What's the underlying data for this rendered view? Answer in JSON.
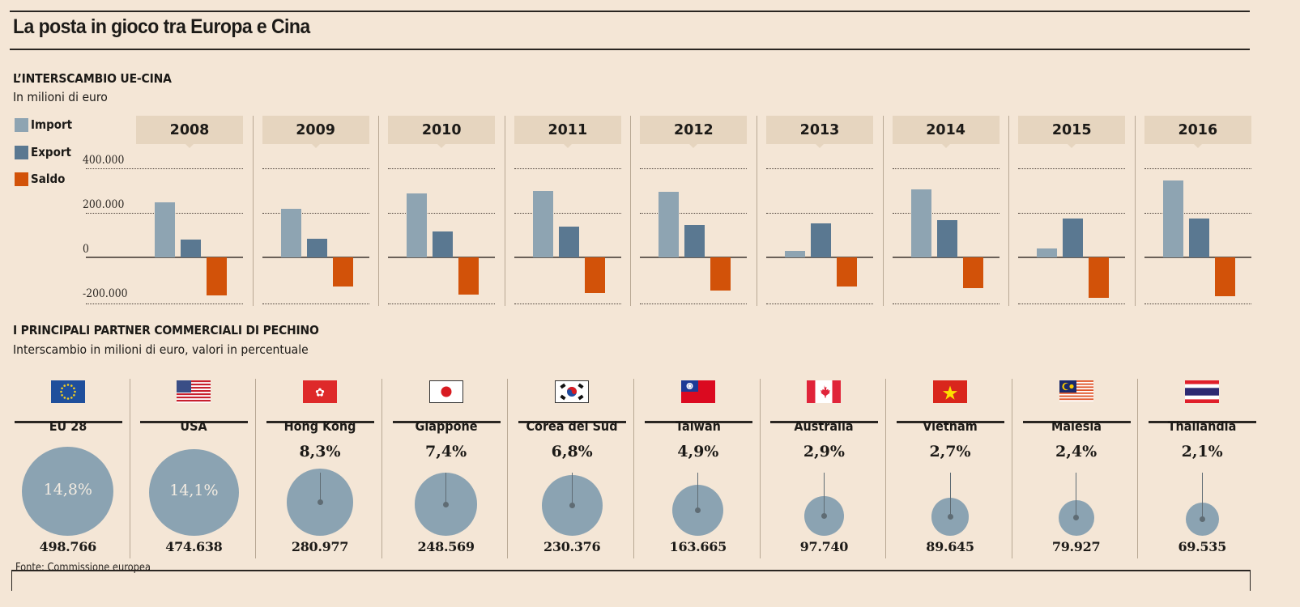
{
  "title": "La posta in gioco tra Europa e Cina",
  "section1": {
    "title": "L’INTERSCAMBIO UE-CINA",
    "subtitle": "In milioni di euro"
  },
  "section2": {
    "title": "I PRINCIPALI PARTNER COMMERCIALI DI PECHINO",
    "subtitle": "Interscambio in milioni di euro, valori in percentuale"
  },
  "source": "Fonte: Commissione europea",
  "colors": {
    "import": "#8ea4b2",
    "export": "#5a7891",
    "saldo": "#d25209",
    "bubble": "#8ba3b2",
    "background": "#f4e6d6"
  },
  "chart_data": [
    {
      "type": "bar",
      "title": "L’INTERSCAMBIO UE-CINA",
      "subtitle": "In milioni di euro",
      "categories": [
        "2008",
        "2009",
        "2010",
        "2011",
        "2012",
        "2013",
        "2014",
        "2015",
        "2016"
      ],
      "series": [
        {
          "name": "Import",
          "values": [
            249000,
            219000,
            286000,
            298000,
            295000,
            30000,
            305000,
            39000,
            347000
          ]
        },
        {
          "name": "Export",
          "values": [
            79000,
            84000,
            116000,
            138000,
            147000,
            151000,
            167000,
            173000,
            173000
          ]
        },
        {
          "name": "Saldo",
          "values": [
            -171000,
            -130000,
            -168000,
            -159000,
            -148000,
            -130000,
            -137000,
            -180000,
            -173000
          ]
        }
      ],
      "yticks": [
        "400.000",
        "200.000",
        "0",
        "-200.000"
      ],
      "ytick_values": [
        400000,
        200000,
        0,
        -200000
      ],
      "ylim": [
        -200000,
        400000
      ],
      "grid": true,
      "legend": "left",
      "xlabel": "",
      "ylabel": ""
    },
    {
      "type": "scatter",
      "title": "I PRINCIPALI PARTNER COMMERCIALI DI PECHINO",
      "subtitle": "Interscambio in milioni di euro, valori in percentuale",
      "categories": [
        "EU 28",
        "USA",
        "Hong Kong",
        "Giappone",
        "Corea del Sud",
        "Taiwan",
        "Australia",
        "Vietnam",
        "Malesia",
        "Thailandia"
      ],
      "flags": [
        "eu-flag",
        "usa-flag",
        "hong-kong-flag",
        "japan-flag",
        "south-korea-flag",
        "taiwan-flag",
        "canada-flag",
        "vietnam-flag",
        "malaysia-flag",
        "thailand-flag"
      ],
      "percent_labels": [
        "14,8%",
        "14,1%",
        "8,3%",
        "7,4%",
        "6,8%",
        "4,9%",
        "2,9%",
        "2,7%",
        "2,4%",
        "2,1%"
      ],
      "percent": [
        14.8,
        14.1,
        8.3,
        7.4,
        6.8,
        4.9,
        2.9,
        2.7,
        2.4,
        2.1
      ],
      "value_labels": [
        "498.766",
        "474.638",
        "280.977",
        "248.569",
        "230.376",
        "163.665",
        "97.740",
        "89.645",
        "79.927",
        "69.535"
      ],
      "values": [
        498766,
        474638,
        280977,
        248569,
        230376,
        163665,
        97740,
        89645,
        79927,
        69535
      ]
    }
  ]
}
